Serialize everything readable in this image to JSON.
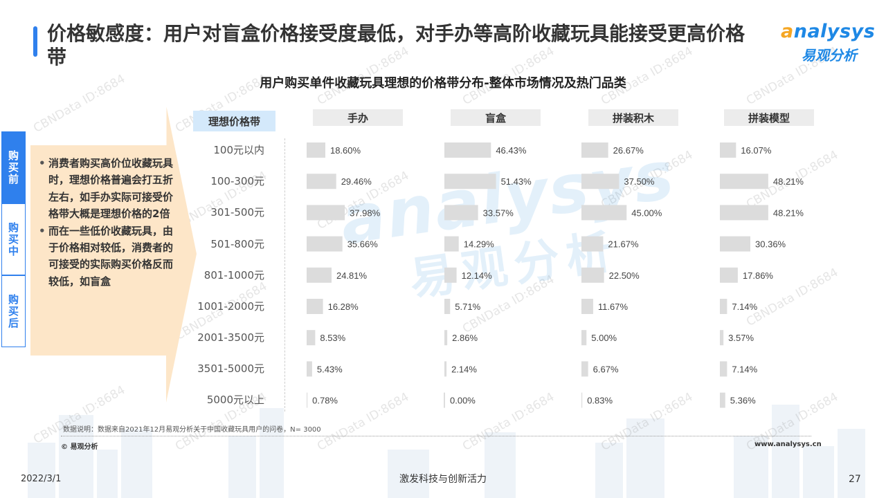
{
  "header": {
    "title": "价格敏感度：用户对盲盒价格接受度最低，对手办等高阶收藏玩具能接受更高价格带",
    "logo_en_prefix": "a",
    "logo_en_rest": "nalysys",
    "logo_cn": "易观分析"
  },
  "stages": [
    "购买前",
    "购买中",
    "购买后"
  ],
  "insight_bullets": [
    "消费者购买高价位收藏玩具时，理想价格普遍会打五折左右，如手办实际可接受价格带大概是理想价格的2倍",
    "而在一些低价收藏玩具，由于价格相对较低，消费者的可接受的实际购买价格反而较低，如盲盒"
  ],
  "watermark_text": "CBNData ID:8684",
  "center_watermark": {
    "en": "analysys",
    "cn": "易观分析"
  },
  "chart_data": {
    "type": "bar",
    "title": "用户购买单件收藏玩具理想的价格带分布-整体市场情况及热门品类",
    "band_header": "理想价格带",
    "categories": [
      "100元以内",
      "100-300元",
      "301-500元",
      "501-800元",
      "801-1000元",
      "1001-2000元",
      "2001-3500元",
      "3501-5000元",
      "5000元以上"
    ],
    "series": [
      {
        "name": "手办",
        "values": [
          18.6,
          29.46,
          37.98,
          35.66,
          24.81,
          16.28,
          8.53,
          5.43,
          0.78
        ],
        "labels": [
          "18.60%",
          "29.46%",
          "37.98%",
          "35.66%",
          "24.81%",
          "16.28%",
          "8.53%",
          "5.43%",
          "0.78%"
        ]
      },
      {
        "name": "盲盒",
        "values": [
          46.43,
          51.43,
          33.57,
          14.29,
          12.14,
          5.71,
          2.86,
          2.14,
          0.0
        ],
        "labels": [
          "46.43%",
          "51.43%",
          "33.57%",
          "14.29%",
          "12.14%",
          "5.71%",
          "2.86%",
          "2.14%",
          "0.00%"
        ]
      },
      {
        "name": "拼装积木",
        "values": [
          26.67,
          37.5,
          45.0,
          21.67,
          22.5,
          11.67,
          5.0,
          6.67,
          0.83
        ],
        "labels": [
          "26.67%",
          "37.50%",
          "45.00%",
          "21.67%",
          "22.50%",
          "11.67%",
          "5.00%",
          "6.67%",
          "0.83%"
        ]
      },
      {
        "name": "拼装模型",
        "values": [
          16.07,
          48.21,
          48.21,
          30.36,
          17.86,
          7.14,
          3.57,
          7.14,
          5.36
        ],
        "labels": [
          "16.07%",
          "48.21%",
          "48.21%",
          "30.36%",
          "17.86%",
          "7.14%",
          "3.57%",
          "7.14%",
          "5.36%"
        ]
      }
    ],
    "bar_color": "#dcdcdc",
    "grid": false
  },
  "footer": {
    "note": "数据说明：数据来自2021年12月易观分析关于中国收藏玩具用户的问卷，N= 3000",
    "copyright": "© 易观分析",
    "website": "www.analysys.cn",
    "date": "2022/3/1",
    "slogan": "激发科技与创新活力",
    "page_number": "27"
  },
  "colors": {
    "accent": "#2f80ed",
    "logo_orange": "#f5a623",
    "arrow_fill": "#fde6c8",
    "band_header_bg": "#d4e9fb"
  }
}
